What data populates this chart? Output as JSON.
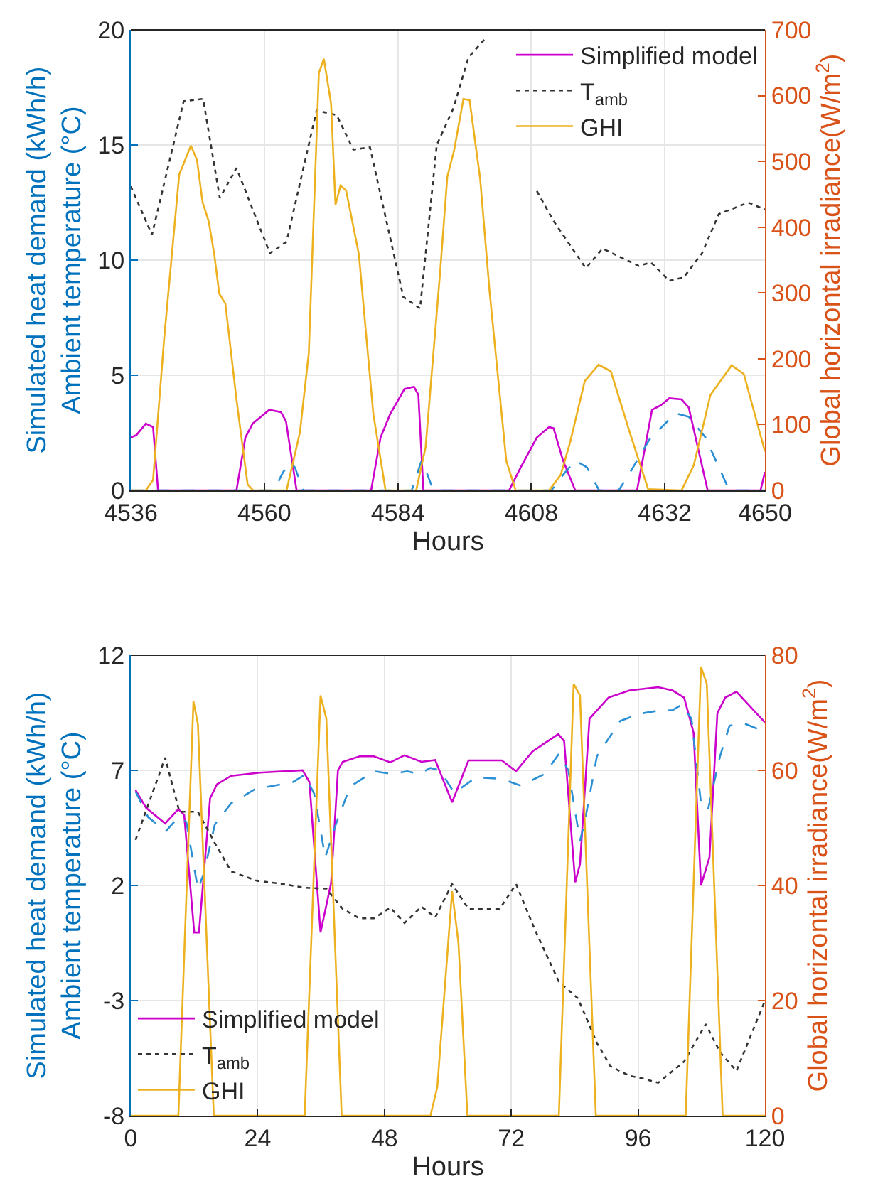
{
  "chart_data": [
    {
      "type": "line",
      "xlabel": "Hours",
      "ylabel": "Simulated heat demand (kWh/h)\nAmbient temperature (°C)",
      "y2label": "Global horizontal irradiance(W/m$^{2}$)",
      "xlim": [
        4536,
        4650
      ],
      "xticks": [
        4536,
        4560,
        4584,
        4608,
        4632,
        4650
      ],
      "ylim": [
        0,
        20
      ],
      "yticks": [
        0,
        5,
        10,
        15,
        20
      ],
      "y2lim": [
        0,
        700
      ],
      "y2ticks": [
        0,
        100,
        200,
        300,
        400,
        500,
        600,
        700
      ],
      "grid": true,
      "legend": "top right",
      "series": [
        {
          "name": "Simplified model",
          "color": "#cc00cc",
          "line_style": "solid",
          "x": [
            4536,
            4537,
            4538.7,
            4540,
            4540.9,
            4555,
            4556.6,
            4557.9,
            4560.9,
            4563,
            4563.9,
            4565.8,
            4579.2,
            4580.9,
            4582.6,
            4585.2,
            4586.9,
            4587.7,
            4588.6,
            4604,
            4606.1,
            4609,
            4611.2,
            4612,
            4613.7,
            4615.9,
            4627,
            4629.7,
            4631.3,
            4632.8,
            4635,
            4636.3,
            4639.7,
            4649.2,
            4650
          ],
          "values": [
            2.3,
            2.4,
            2.9,
            2.75,
            0,
            0,
            2.3,
            2.9,
            3.5,
            3.4,
            3.0,
            0,
            0,
            2.3,
            3.3,
            4.4,
            4.5,
            4.15,
            0,
            0,
            1.0,
            2.3,
            2.75,
            2.7,
            1.3,
            0,
            0,
            3.5,
            3.7,
            4.0,
            3.95,
            3.6,
            0,
            0,
            0.8
          ]
        },
        {
          "color": "#2b8fd6",
          "line_style": "dashed",
          "x": [
            4536,
            4561.7,
            4563.4,
            4564.7,
            4565.5,
            4567,
            4586.5,
            4588.2,
            4589.3,
            4590.4,
            4611.6,
            4613.8,
            4615.9,
            4618,
            4620.2,
            4623.7,
            4625.8,
            4629.2,
            4633.9,
            4636.3,
            4639.3,
            4643.6,
            4650
          ],
          "values": [
            0,
            0,
            0.8,
            1.2,
            1.0,
            0,
            0,
            1.25,
            0.7,
            0,
            0,
            0.7,
            1.3,
            1.0,
            0,
            0,
            0.8,
            2.2,
            3.35,
            3.2,
            2.3,
            0,
            0
          ]
        },
        {
          "name": "T$_{amb}$",
          "color": "#333333",
          "line_style": "dotted",
          "x": [
            4536,
            4539.8,
            4545.5,
            4549,
            4552,
            4555,
            4561,
            4564,
            4569.4,
            4573,
            4576,
            4579,
            4585,
            4588,
            4591,
            4594,
            4596.7,
            4600,
            4604,
            4609,
            4612,
            4617.8,
            4620.8,
            4627.3,
            4629.5,
            4632.8,
            4635.4,
            4638.7,
            4641.7,
            4647,
            4650
          ],
          "values": [
            13.2,
            11.1,
            16.9,
            17.0,
            12.7,
            14.0,
            10.3,
            10.8,
            16.5,
            16.3,
            14.8,
            14.9,
            8.4,
            7.9,
            15.0,
            16.6,
            18.8,
            19.7,
            null,
            13.0,
            11.7,
            9.65,
            10.5,
            9.75,
            9.9,
            9.1,
            9.25,
            10.3,
            12.0,
            12.5,
            12.2
          ]
        },
        {
          "name": "GHI",
          "color": "#edb120",
          "line_style": "solid",
          "axis": "y2",
          "x": [
            4536,
            4538.7,
            4540,
            4542,
            4544.7,
            4546.8,
            4547.9,
            4548.9,
            4550,
            4551,
            4551.9,
            4553,
            4555,
            4557,
            4558,
            4564,
            4566.4,
            4568,
            4569.8,
            4570.7,
            4572,
            4572.8,
            4573.7,
            4574.7,
            4577,
            4579.6,
            4581.8,
            4587.3,
            4589,
            4591.6,
            4592.9,
            4594.1,
            4595.8,
            4596.9,
            4598.8,
            4600.5,
            4603.5,
            4605.2,
            4611.2,
            4613.3,
            4615,
            4617.6,
            4620.1,
            4622.3,
            4625.7,
            4629,
            4635,
            4637.2,
            4640.2,
            4644,
            4646.2,
            4650
          ],
          "values": [
            0,
            0,
            16,
            231,
            480,
            524,
            502,
            438,
            409,
            359,
            299,
            284,
            138,
            9,
            0,
            0,
            88,
            209,
            634,
            656,
            588,
            434,
            463,
            456,
            359,
            116,
            0,
            0,
            66,
            331,
            477,
            516,
            595,
            593,
            474,
            302,
            45,
            0,
            0,
            24,
            74,
            166,
            191,
            181,
            88,
            2,
            0,
            38,
            145,
            190,
            177,
            59
          ]
        }
      ]
    },
    {
      "type": "line",
      "xlabel": "Hours",
      "ylabel": "Simulated heat demand (kWh/h)\nAmbient temperature (°C)",
      "y2label": "Global horizontal irradiance(W/m$^{2}$)",
      "xlim": [
        0,
        120
      ],
      "xticks": [
        0,
        24,
        48,
        72,
        96,
        120
      ],
      "ylim": [
        -8,
        12
      ],
      "yticks": [
        -8,
        -3,
        2,
        7,
        12
      ],
      "y2lim": [
        0,
        80
      ],
      "y2ticks": [
        0,
        20,
        40,
        60,
        80
      ],
      "grid": true,
      "legend": "bottom left",
      "series": [
        {
          "name": "Simplified model",
          "color": "#cc00cc",
          "line_style": "solid",
          "x": [
            0.9,
            2.9,
            6.5,
            9,
            10.1,
            12,
            12.9,
            15,
            16.3,
            19,
            24.4,
            32.5,
            33.8,
            35.9,
            37.9,
            39.2,
            40.1,
            43.3,
            46,
            49.1,
            51.8,
            55,
            57.6,
            60.8,
            63.9,
            70.2,
            72.9,
            76,
            80.9,
            82,
            84.1,
            85,
            86.8,
            90.4,
            94.4,
            99.8,
            102.5,
            104.7,
            106.5,
            107.9,
            109.5,
            111,
            112.5,
            114.6,
            120
          ],
          "values": [
            6.14,
            5.37,
            4.69,
            5.31,
            5.06,
            -0.04,
            -0.04,
            5.78,
            6.39,
            6.76,
            6.9,
            7.0,
            6.49,
            -0.04,
            2.1,
            7.0,
            7.37,
            7.61,
            7.61,
            7.35,
            7.65,
            7.37,
            7.45,
            5.61,
            7.43,
            7.43,
            6.96,
            7.82,
            8.57,
            8.27,
            2.14,
            2.92,
            9.24,
            10.16,
            10.47,
            10.61,
            10.47,
            10.16,
            8.63,
            2.0,
            3.22,
            9.49,
            10.16,
            10.41,
            9.08
          ]
        },
        {
          "color": "#2b8fd6",
          "line_style": "dashed",
          "x": [
            0.9,
            3.3,
            6.6,
            9,
            10.5,
            12.7,
            13.8,
            15.9,
            19,
            23.5,
            30.7,
            32.9,
            34.7,
            36.8,
            38.8,
            41.5,
            46,
            49.5,
            52.3,
            54.5,
            56.7,
            58.5,
            61.2,
            65.3,
            70.2,
            73.8,
            78.3,
            81,
            82.8,
            85,
            85.9,
            88.2,
            92.6,
            96.2,
            99.8,
            102.5,
            104.3,
            106.1,
            107.9,
            109.2,
            111.5,
            113.3,
            116,
            120
          ],
          "values": [
            6.08,
            4.96,
            4.35,
            4.96,
            4.76,
            1.84,
            2.51,
            4.65,
            5.57,
            6.18,
            6.49,
            6.8,
            5.98,
            3.22,
            4.65,
            6.29,
            6.96,
            6.84,
            6.96,
            6.84,
            7.1,
            7.0,
            6.02,
            6.69,
            6.63,
            6.33,
            6.84,
            7.71,
            7.0,
            3.94,
            4.76,
            7.61,
            9.14,
            9.45,
            9.59,
            9.61,
            9.86,
            9.24,
            5.57,
            5.27,
            7.61,
            8.94,
            9.04,
            8.67
          ]
        },
        {
          "name": "T$_{amb}$",
          "color": "#333333",
          "line_style": "dotted",
          "x": [
            0.9,
            6.5,
            9.2,
            12.7,
            15.9,
            19,
            23.9,
            28.9,
            32.9,
            37,
            40.1,
            43.3,
            46,
            49.1,
            51.8,
            55,
            57.6,
            60.8,
            63.9,
            69.8,
            72.9,
            76.5,
            81,
            84.6,
            88.2,
            90.8,
            94.4,
            96.7,
            99.8,
            104.7,
            108.8,
            111.5,
            114.6,
            120
          ],
          "values": [
            3.98,
            7.55,
            5.2,
            5.2,
            3.84,
            2.61,
            2.2,
            2.06,
            1.9,
            1.86,
            0.98,
            0.57,
            0.57,
            1.04,
            0.37,
            1.08,
            0.61,
            2.06,
            0.98,
            0.98,
            2.06,
            0.06,
            -2.18,
            -2.9,
            -4.84,
            -5.86,
            -6.27,
            -6.37,
            -6.57,
            -5.65,
            -4.02,
            -5.24,
            -6.06,
            -3.0
          ]
        },
        {
          "name": "GHI",
          "color": "#edb120",
          "line_style": "solid",
          "axis": "y2",
          "x": [
            0,
            9,
            11.85,
            12.7,
            15.7,
            32.9,
            35.9,
            37,
            39.9,
            56.7,
            58,
            60.8,
            62,
            63.7,
            81,
            83.8,
            85,
            88,
            105,
            107.9,
            109,
            112,
            120
          ],
          "values": [
            0,
            0,
            72,
            68,
            0,
            0,
            73,
            69,
            0,
            0,
            5,
            39,
            30,
            0,
            0,
            75,
            73,
            0,
            0,
            78,
            75,
            0,
            0
          ]
        }
      ]
    }
  ]
}
